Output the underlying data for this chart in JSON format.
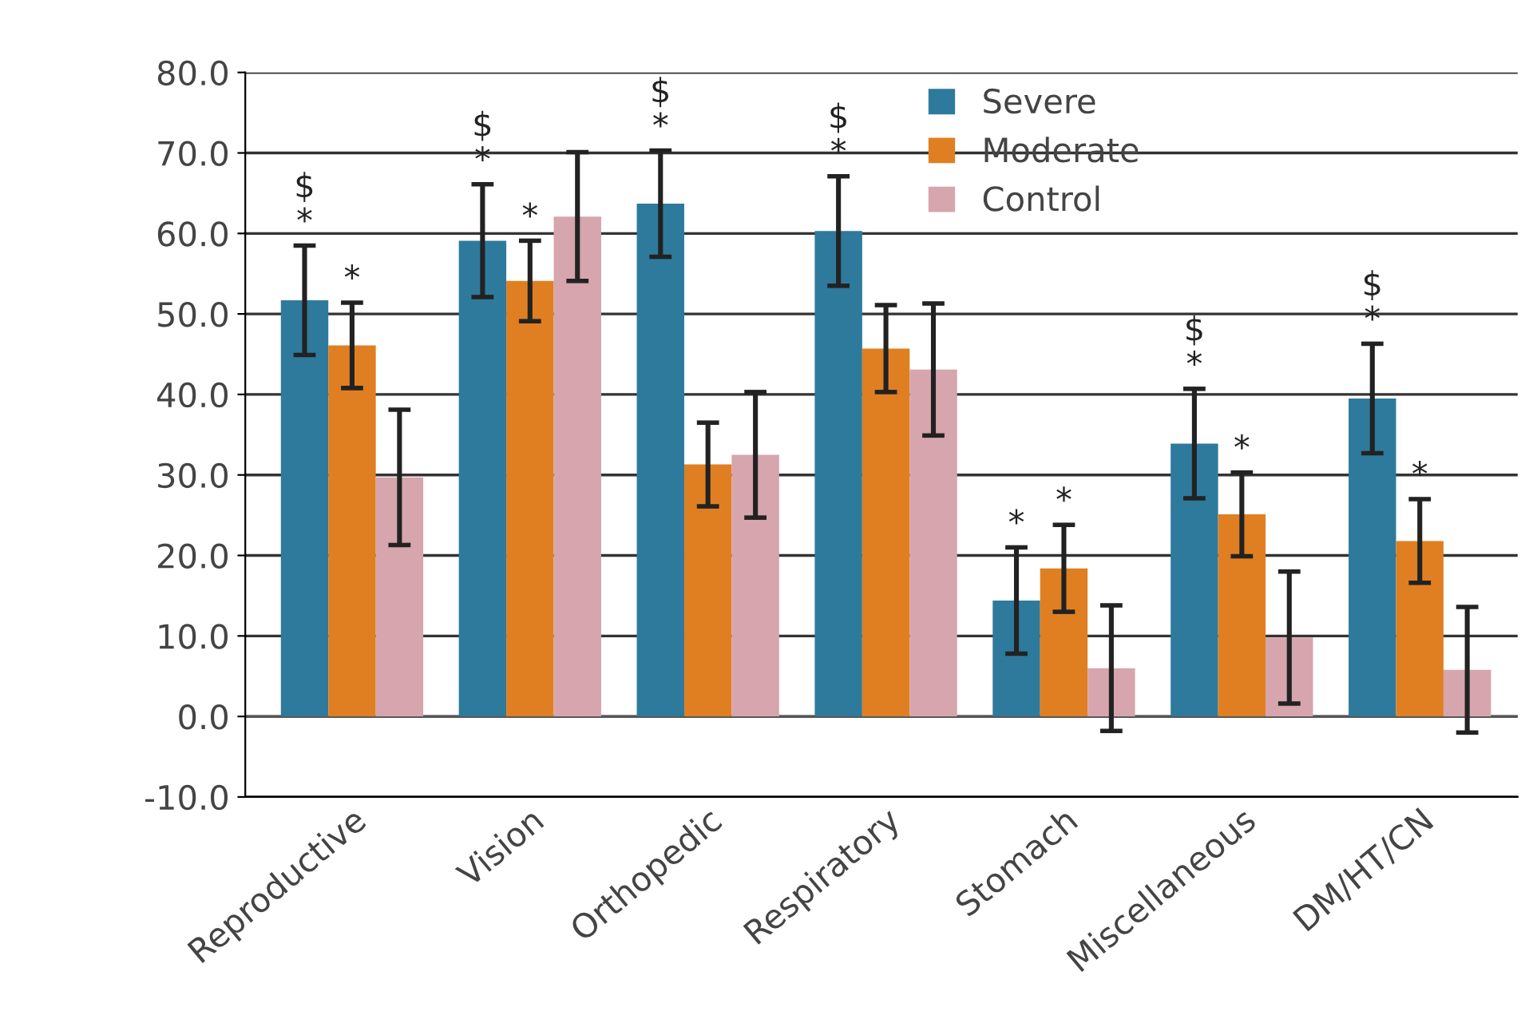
{
  "chart_data": {
    "type": "bar",
    "categories": [
      "Reproductive",
      "Vision",
      "Orthopedic",
      "Respiratory",
      "Stomach",
      "Miscellaneous",
      "DM/HT/CN"
    ],
    "series": [
      {
        "name": "Severe",
        "color": "#2e7a9c",
        "values": [
          51.7,
          59.1,
          63.7,
          60.3,
          14.4,
          33.9,
          39.5
        ],
        "errors": [
          6.8,
          7.0,
          6.6,
          6.8,
          6.6,
          6.8,
          6.8
        ],
        "value_labels": [
          "$\n*",
          "$\n*",
          "$\n*",
          "$\n*",
          "*",
          "$\n*",
          "$\n*"
        ]
      },
      {
        "name": "Moderate",
        "color": "#e07f22",
        "values": [
          46.1,
          54.1,
          31.3,
          45.7,
          18.4,
          25.1,
          21.8
        ],
        "errors": [
          5.3,
          5.0,
          5.2,
          5.4,
          5.4,
          5.2,
          5.2
        ],
        "value_labels": [
          "*",
          "*",
          null,
          null,
          "*",
          "*",
          "*"
        ]
      },
      {
        "name": "Control",
        "color": "#d6a5ad",
        "values": [
          29.7,
          62.1,
          32.5,
          43.1,
          6.0,
          9.8,
          5.8
        ],
        "errors": [
          8.4,
          8.0,
          7.8,
          8.2,
          7.8,
          8.2,
          7.8
        ]
      }
    ],
    "ylim": [
      -10,
      80
    ],
    "yticks": [
      {
        "value": -10,
        "label": "-10.0"
      },
      {
        "value": 0,
        "label": "0.0"
      },
      {
        "value": 10,
        "label": "10.0"
      },
      {
        "value": 20,
        "label": "20.0"
      },
      {
        "value": 30,
        "label": "30.0"
      },
      {
        "value": 40,
        "label": "40.0"
      },
      {
        "value": 50,
        "label": "50.0"
      },
      {
        "value": 60,
        "label": "60.0"
      },
      {
        "value": 70,
        "label": "70.0"
      },
      {
        "value": 80,
        "label": "80.0"
      }
    ],
    "grid": "y",
    "legend": "top"
  }
}
